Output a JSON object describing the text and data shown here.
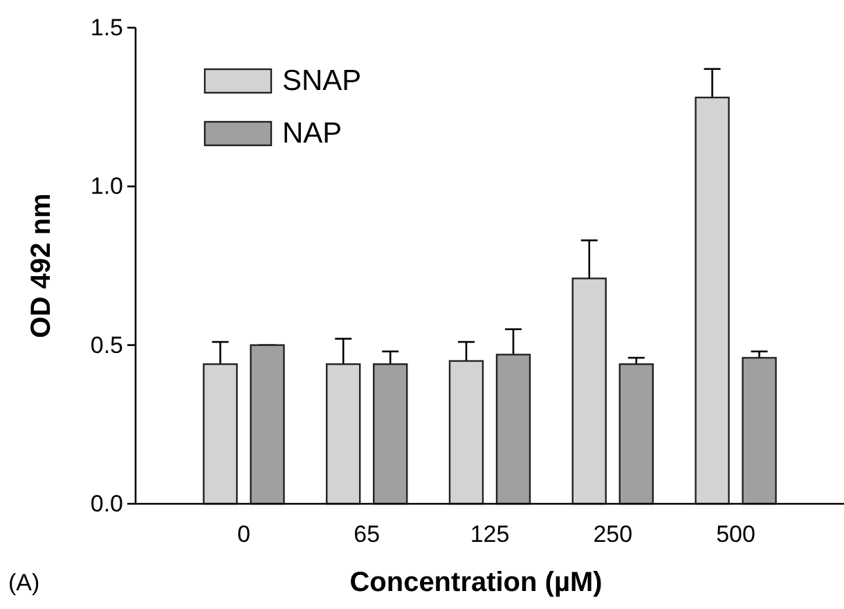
{
  "chart_data": {
    "type": "bar",
    "xlabel": "Concentration (µM)",
    "ylabel": "OD 492 nm",
    "categories": [
      "0",
      "65",
      "125",
      "250",
      "500"
    ],
    "series": [
      {
        "name": "SNAP",
        "color": "#d3d3d3",
        "values": [
          0.44,
          0.44,
          0.45,
          0.71,
          1.28
        ],
        "errors": [
          [
            0.44,
            0.51
          ],
          [
            0.44,
            0.52
          ],
          [
            0.45,
            0.51
          ],
          [
            0.71,
            0.83
          ],
          [
            1.28,
            1.37
          ]
        ]
      },
      {
        "name": "NAP",
        "color": "#a0a0a0",
        "values": [
          0.5,
          0.44,
          0.47,
          0.44,
          0.46
        ],
        "errors": [
          [
            0.5,
            0.5
          ],
          [
            0.44,
            0.48
          ],
          [
            0.47,
            0.55
          ],
          [
            0.44,
            0.46
          ],
          [
            0.46,
            0.48
          ]
        ]
      }
    ],
    "ylim": [
      0,
      1.5
    ],
    "yticks": [
      {
        "value": 0,
        "label": "0.0"
      },
      {
        "value": 0.5,
        "label": "0.5"
      },
      {
        "value": 1,
        "label": "1.0"
      },
      {
        "value": 1.5,
        "label": "1.5"
      }
    ],
    "grid": false,
    "legend": "top left",
    "annotations": [
      "(A)"
    ]
  }
}
